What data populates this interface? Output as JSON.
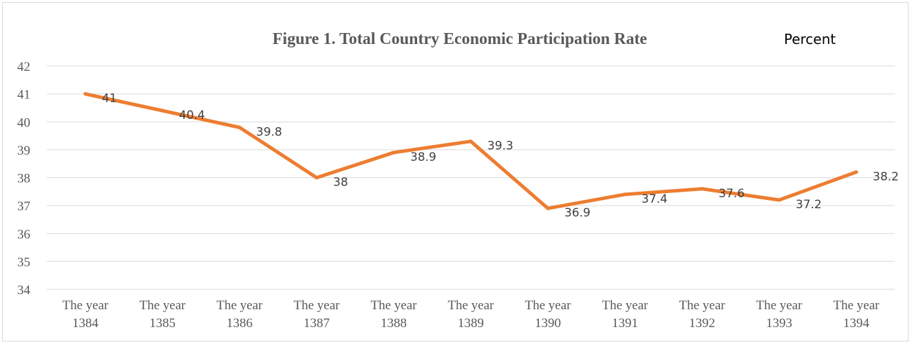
{
  "chart_data": {
    "type": "line",
    "title": "Figure 1. Total Country Economic Participation Rate",
    "unit_label": "Percent",
    "categories": [
      [
        "The year",
        "1384"
      ],
      [
        "The year",
        "1385"
      ],
      [
        "The year",
        "1386"
      ],
      [
        "The year",
        "1387"
      ],
      [
        "The year",
        "1388"
      ],
      [
        "The year",
        "1389"
      ],
      [
        "The year",
        "1390"
      ],
      [
        "The year",
        "1391"
      ],
      [
        "The year",
        "1392"
      ],
      [
        "The year",
        "1393"
      ],
      [
        "The year",
        "1394"
      ]
    ],
    "series": [
      {
        "values": [
          41,
          40.4,
          39.8,
          38,
          38.9,
          39.3,
          36.9,
          37.4,
          37.6,
          37.2,
          38.2
        ],
        "color": "#ED7D31"
      }
    ],
    "data_labels": [
      "41",
      "40.4",
      "39.8",
      "38",
      "38.9",
      "39.3",
      "36.9",
      "37.4",
      "37.6",
      "37.2",
      "38.2"
    ],
    "ylim": [
      34,
      42
    ],
    "yticks": [
      "34",
      "35",
      "36",
      "37",
      "38",
      "39",
      "40",
      "41",
      "42"
    ],
    "grid": true,
    "legend": "none"
  }
}
